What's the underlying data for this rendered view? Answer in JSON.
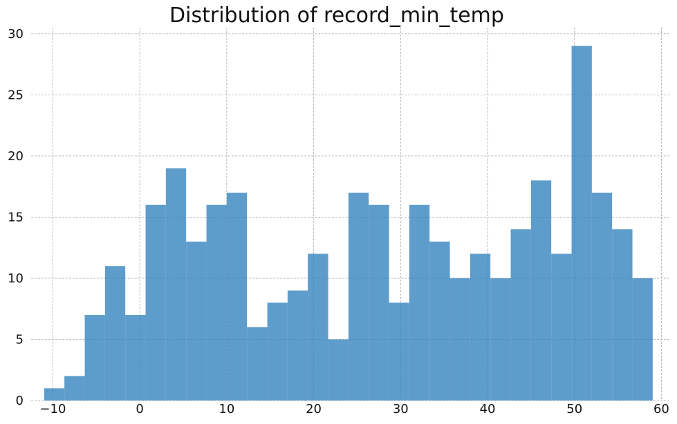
{
  "chart_data": {
    "type": "bar",
    "title": "Distribution of record_min_temp",
    "xlabel": "",
    "ylabel": "",
    "xlim": [
      -12.5,
      61
    ],
    "ylim": [
      0,
      30.5
    ],
    "grid": true,
    "legend": "none",
    "bar_color": "#3182bd",
    "x_ticks": [
      -10,
      0,
      10,
      20,
      30,
      40,
      50,
      60
    ],
    "x_tick_labels": [
      "−10",
      "0",
      "10",
      "20",
      "30",
      "40",
      "50",
      "60"
    ],
    "y_ticks": [
      0,
      5,
      10,
      15,
      20,
      25,
      30
    ],
    "y_tick_labels": [
      "0",
      "5",
      "10",
      "15",
      "20",
      "25",
      "30"
    ],
    "bins": [
      {
        "start": -11,
        "end": -8.67,
        "count": 1
      },
      {
        "start": -8.67,
        "end": -6.33,
        "count": 2
      },
      {
        "start": -6.33,
        "end": -4,
        "count": 7
      },
      {
        "start": -4,
        "end": -1.67,
        "count": 11
      },
      {
        "start": -1.67,
        "end": 0.67,
        "count": 7
      },
      {
        "start": 0.67,
        "end": 3,
        "count": 16
      },
      {
        "start": 3,
        "end": 5.33,
        "count": 19
      },
      {
        "start": 5.33,
        "end": 7.67,
        "count": 13
      },
      {
        "start": 7.67,
        "end": 10,
        "count": 16
      },
      {
        "start": 10,
        "end": 12.33,
        "count": 17
      },
      {
        "start": 12.33,
        "end": 14.67,
        "count": 6
      },
      {
        "start": 14.67,
        "end": 17,
        "count": 8
      },
      {
        "start": 17,
        "end": 19.33,
        "count": 9
      },
      {
        "start": 19.33,
        "end": 21.67,
        "count": 12
      },
      {
        "start": 21.67,
        "end": 24,
        "count": 5
      },
      {
        "start": 24,
        "end": 26.33,
        "count": 17
      },
      {
        "start": 26.33,
        "end": 28.67,
        "count": 16
      },
      {
        "start": 28.67,
        "end": 31,
        "count": 8
      },
      {
        "start": 31,
        "end": 33.33,
        "count": 16
      },
      {
        "start": 33.33,
        "end": 35.67,
        "count": 13
      },
      {
        "start": 35.67,
        "end": 38,
        "count": 10
      },
      {
        "start": 38,
        "end": 40.33,
        "count": 12
      },
      {
        "start": 40.33,
        "end": 42.67,
        "count": 10
      },
      {
        "start": 42.67,
        "end": 45,
        "count": 14
      },
      {
        "start": 45,
        "end": 47.33,
        "count": 18
      },
      {
        "start": 47.33,
        "end": 49.67,
        "count": 12
      },
      {
        "start": 49.67,
        "end": 52,
        "count": 29
      },
      {
        "start": 52,
        "end": 54.33,
        "count": 17
      },
      {
        "start": 54.33,
        "end": 56.67,
        "count": 14
      },
      {
        "start": 56.67,
        "end": 59,
        "count": 10
      }
    ]
  }
}
